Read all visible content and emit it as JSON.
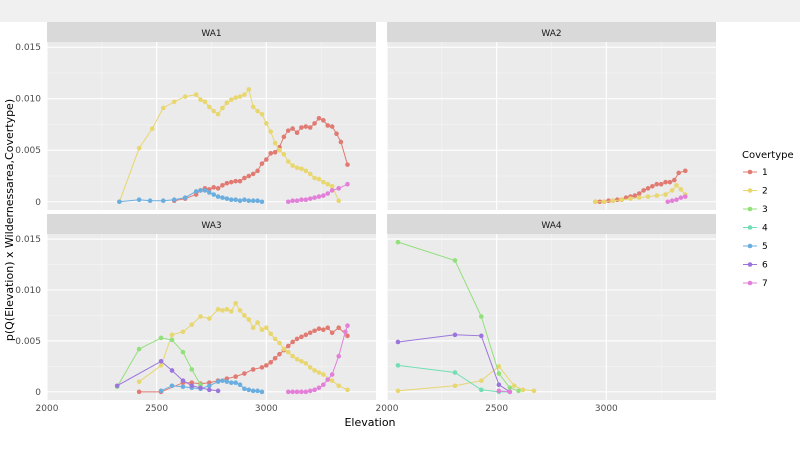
{
  "chart_data": {
    "type": "line",
    "xlabel": "Elevation",
    "ylabel": "p(Q(Elevation) x Wildernessarea,Covertype)",
    "legend_title": "Covertype",
    "legend_position": "right",
    "colors": {
      "1": "#e07a72",
      "2": "#e8d66e",
      "3": "#91e07a",
      "4": "#71dfb3",
      "5": "#6aaee0",
      "6": "#9a76dc",
      "7": "#e37fd9"
    },
    "panels": [
      {
        "title": "WA1",
        "xlim": [
          2000,
          3500
        ],
        "ylim": [
          -0.0008,
          0.0155
        ],
        "xticks": [
          2000,
          2500,
          3000
        ],
        "yticks": [
          0,
          0.005,
          0.01,
          0.015
        ],
        "ytick_labels": [
          "0",
          "0.005",
          "0.010",
          "0.015"
        ],
        "xtick_labels": [],
        "series": [
          {
            "name": "1",
            "x": [
              2580,
              2630,
              2680,
              2700,
              2720,
              2740,
              2760,
              2780,
              2800,
              2820,
              2840,
              2860,
              2880,
              2900,
              2920,
              2940,
              2960,
              2980,
              3000,
              3020,
              3040,
              3060,
              3080,
              3100,
              3120,
              3140,
              3160,
              3180,
              3200,
              3220,
              3240,
              3260,
              3280,
              3300,
              3320,
              3340,
              3370
            ],
            "y": [
              0.0001,
              0.0003,
              0.0007,
              0.0011,
              0.0013,
              0.0012,
              0.0014,
              0.0013,
              0.0016,
              0.0018,
              0.0019,
              0.002,
              0.002,
              0.0023,
              0.0025,
              0.0027,
              0.003,
              0.0037,
              0.0041,
              0.0047,
              0.0048,
              0.0053,
              0.0063,
              0.0069,
              0.0071,
              0.0067,
              0.0072,
              0.0073,
              0.0072,
              0.0076,
              0.0081,
              0.0079,
              0.0074,
              0.0073,
              0.0066,
              0.0058,
              0.0036
            ]
          },
          {
            "name": "2",
            "x": [
              2330,
              2420,
              2480,
              2530,
              2580,
              2630,
              2680,
              2700,
              2720,
              2740,
              2760,
              2780,
              2800,
              2820,
              2840,
              2860,
              2880,
              2900,
              2920,
              2940,
              2960,
              2980,
              3000,
              3020,
              3040,
              3060,
              3080,
              3100,
              3120,
              3140,
              3160,
              3180,
              3200,
              3220,
              3240,
              3260,
              3280,
              3300,
              3330
            ],
            "y": [
              0,
              0.0052,
              0.0071,
              0.0091,
              0.0097,
              0.0102,
              0.0104,
              0.0099,
              0.0097,
              0.0092,
              0.0088,
              0.0085,
              0.0091,
              0.0096,
              0.0099,
              0.0101,
              0.0102,
              0.0104,
              0.0109,
              0.0092,
              0.0088,
              0.0085,
              0.0076,
              0.0068,
              0.0057,
              0.005,
              0.0046,
              0.0039,
              0.0035,
              0.0033,
              0.0032,
              0.003,
              0.0027,
              0.0023,
              0.0022,
              0.0019,
              0.0017,
              0.0015,
              0.0001
            ]
          },
          {
            "name": "5",
            "x": [
              2330,
              2420,
              2470,
              2530,
              2580,
              2630,
              2680,
              2700,
              2720,
              2740,
              2760,
              2780,
              2800,
              2820,
              2840,
              2860,
              2880,
              2900,
              2920,
              2940,
              2960,
              2980
            ],
            "y": [
              0,
              0.0002,
              0.0001,
              0.0001,
              0.0002,
              0.0004,
              0.001,
              0.0011,
              0.0011,
              0.0009,
              0.0007,
              0.0005,
              0.0004,
              0.0003,
              0.0002,
              0.0002,
              0.0001,
              0.0002,
              0.0001,
              0.0001,
              0.0001,
              0
            ]
          },
          {
            "name": "7",
            "x": [
              3100,
              3120,
              3140,
              3160,
              3180,
              3200,
              3220,
              3240,
              3260,
              3280,
              3300,
              3330,
              3370
            ],
            "y": [
              0,
              0.0001,
              0.0001,
              0.0002,
              0.0002,
              0.0003,
              0.0004,
              0.0005,
              0.0006,
              0.0008,
              0.0011,
              0.0013,
              0.0017
            ]
          }
        ]
      },
      {
        "title": "WA2",
        "xlim": [
          2000,
          3500
        ],
        "ylim": [
          -0.0008,
          0.0155
        ],
        "xticks": [
          2000,
          2500,
          3000
        ],
        "yticks": [
          0,
          0.005,
          0.01,
          0.015
        ],
        "ytick_labels": [],
        "xtick_labels": [],
        "series": [
          {
            "name": "1",
            "x": [
              2950,
              2970,
              2990,
              3010,
              3030,
              3050,
              3070,
              3090,
              3110,
              3130,
              3150,
              3170,
              3190,
              3210,
              3230,
              3250,
              3270,
              3290,
              3310,
              3330,
              3360
            ],
            "y": [
              0,
              0,
              0,
              0.0001,
              0.0001,
              0.0002,
              0.0002,
              0.0004,
              0.0005,
              0.0006,
              0.0008,
              0.0011,
              0.0013,
              0.0015,
              0.0017,
              0.0017,
              0.0019,
              0.0019,
              0.0021,
              0.0028,
              0.003
            ]
          },
          {
            "name": "2",
            "x": [
              2950,
              2990,
              3030,
              3070,
              3110,
              3150,
              3190,
              3230,
              3270,
              3300,
              3320,
              3340,
              3360
            ],
            "y": [
              0,
              0,
              0.0001,
              0.0002,
              0.0003,
              0.0004,
              0.0005,
              0.0006,
              0.0007,
              0.0011,
              0.0016,
              0.0012,
              0.0007
            ]
          },
          {
            "name": "7",
            "x": [
              3280,
              3300,
              3320,
              3340,
              3360
            ],
            "y": [
              0,
              0.0001,
              0.0002,
              0.0004,
              0.0005
            ]
          }
        ]
      },
      {
        "title": "WA3",
        "xlim": [
          2000,
          3500
        ],
        "ylim": [
          -0.0008,
          0.0155
        ],
        "xticks": [
          2000,
          2500,
          3000
        ],
        "yticks": [
          0,
          0.005,
          0.01,
          0.015
        ],
        "ytick_labels": [
          "0",
          "0.005",
          "0.010",
          "0.015"
        ],
        "xtick_labels": [
          "2000",
          "2500",
          "3000"
        ],
        "series": [
          {
            "name": "1",
            "x": [
              2420,
              2520,
              2620,
              2660,
              2700,
              2740,
              2780,
              2820,
              2860,
              2900,
              2940,
              2980,
              3000,
              3020,
              3040,
              3060,
              3080,
              3100,
              3120,
              3140,
              3160,
              3180,
              3200,
              3220,
              3240,
              3260,
              3280,
              3300,
              3330,
              3370
            ],
            "y": [
              0,
              0,
              0.0009,
              0.0009,
              0.0008,
              0.0009,
              0.0011,
              0.0013,
              0.0015,
              0.0018,
              0.0022,
              0.0024,
              0.0026,
              0.0029,
              0.0033,
              0.0037,
              0.0041,
              0.0045,
              0.0049,
              0.0052,
              0.0054,
              0.0056,
              0.0058,
              0.006,
              0.0062,
              0.0061,
              0.0063,
              0.0058,
              0.0063,
              0.0055
            ]
          },
          {
            "name": "2",
            "x": [
              2420,
              2520,
              2570,
              2620,
              2660,
              2700,
              2740,
              2780,
              2800,
              2820,
              2840,
              2860,
              2880,
              2900,
              2920,
              2940,
              2960,
              2980,
              3000,
              3020,
              3040,
              3060,
              3080,
              3100,
              3120,
              3140,
              3160,
              3180,
              3200,
              3220,
              3240,
              3260,
              3300,
              3330,
              3370
            ],
            "y": [
              0.001,
              0.0026,
              0.0056,
              0.0059,
              0.0066,
              0.0074,
              0.0072,
              0.0081,
              0.008,
              0.0081,
              0.0079,
              0.0087,
              0.008,
              0.0075,
              0.0071,
              0.0063,
              0.0068,
              0.0061,
              0.0063,
              0.0057,
              0.0052,
              0.0048,
              0.0042,
              0.0039,
              0.0035,
              0.0032,
              0.003,
              0.0028,
              0.0024,
              0.0021,
              0.0019,
              0.0017,
              0.0011,
              0.0006,
              0.0002
            ]
          },
          {
            "name": "3",
            "x": [
              2320,
              2420,
              2520,
              2570,
              2620,
              2660,
              2700
            ],
            "y": [
              0.0005,
              0.0042,
              0.0053,
              0.0051,
              0.0039,
              0.0022,
              0.0007
            ]
          },
          {
            "name": "5",
            "x": [
              2520,
              2570,
              2620,
              2660,
              2700,
              2740,
              2780,
              2800,
              2820,
              2840,
              2860,
              2880,
              2900,
              2920,
              2940,
              2960,
              2980
            ],
            "y": [
              0.0001,
              0.0006,
              0.0005,
              0.0004,
              0.0003,
              0.0006,
              0.001,
              0.0011,
              0.001,
              0.0009,
              0.0009,
              0.0007,
              0.0003,
              0.0002,
              0.0001,
              0.0001,
              0
            ]
          },
          {
            "name": "6",
            "x": [
              2320,
              2520,
              2570,
              2620,
              2660,
              2700,
              2740,
              2780
            ],
            "y": [
              0.0006,
              0.003,
              0.0021,
              0.0011,
              0.0006,
              0.0004,
              0.0002,
              0.0001
            ]
          },
          {
            "name": "7",
            "x": [
              3100,
              3120,
              3140,
              3160,
              3180,
              3200,
              3220,
              3240,
              3260,
              3280,
              3300,
              3330,
              3360,
              3370
            ],
            "y": [
              0,
              0,
              0,
              0,
              0,
              0.0001,
              0.0002,
              0.0004,
              0.0007,
              0.0012,
              0.0017,
              0.0035,
              0.0059,
              0.0065
            ]
          }
        ]
      },
      {
        "title": "WA4",
        "xlim": [
          2000,
          3500
        ],
        "ylim": [
          -0.0008,
          0.0155
        ],
        "xticks": [
          2000,
          2500,
          3000
        ],
        "yticks": [
          0,
          0.005,
          0.01,
          0.015
        ],
        "ytick_labels": [],
        "xtick_labels": [
          "2000",
          "2500",
          "3000"
        ],
        "series": [
          {
            "name": "2",
            "x": [
              2050,
              2310,
              2430,
              2510,
              2580,
              2620,
              2670
            ],
            "y": [
              0.0001,
              0.0006,
              0.0011,
              0.0025,
              0.0006,
              0.0002,
              0.0001
            ]
          },
          {
            "name": "3",
            "x": [
              2050,
              2310,
              2430,
              2510,
              2560,
              2600
            ],
            "y": [
              0.0147,
              0.0129,
              0.0074,
              0.0018,
              0.0004,
              0.0001
            ]
          },
          {
            "name": "4",
            "x": [
              2050,
              2310,
              2430,
              2510,
              2560
            ],
            "y": [
              0.0026,
              0.0019,
              0.0002,
              0,
              0
            ]
          },
          {
            "name": "6",
            "x": [
              2050,
              2310,
              2430,
              2510,
              2560
            ],
            "y": [
              0.0049,
              0.0056,
              0.0055,
              0.0007,
              0
            ]
          },
          {
            "name": "7",
            "x": [
              2510,
              2560
            ],
            "y": [
              0.0001,
              0
            ]
          }
        ]
      }
    ],
    "legend": [
      "1",
      "2",
      "3",
      "4",
      "5",
      "6",
      "7"
    ]
  }
}
